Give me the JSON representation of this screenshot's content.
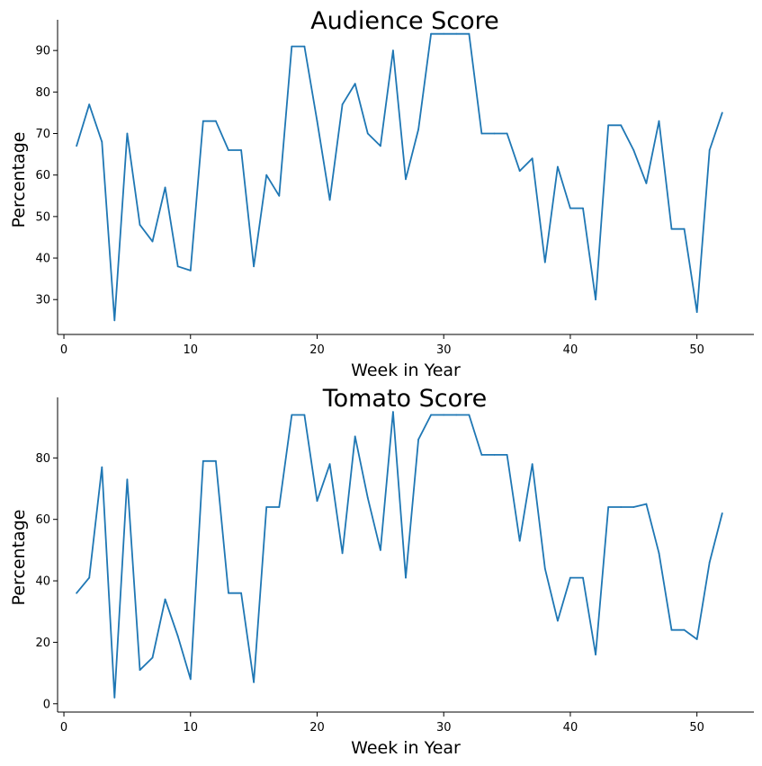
{
  "chart_data": [
    {
      "type": "line",
      "title": "Audience Score",
      "xlabel": "Week in Year",
      "ylabel": "Percentage",
      "xlim": [
        -0.5,
        54.5
      ],
      "ylim": [
        21.6,
        97.4
      ],
      "xticks": [
        0,
        10,
        20,
        30,
        40,
        50
      ],
      "yticks": [
        30,
        40,
        50,
        60,
        70,
        80,
        90
      ],
      "grid": false,
      "color": "#1f77b4",
      "x": [
        1,
        2,
        3,
        4,
        5,
        6,
        7,
        8,
        9,
        10,
        11,
        12,
        13,
        14,
        15,
        16,
        17,
        18,
        19,
        20,
        21,
        22,
        23,
        24,
        25,
        26,
        27,
        28,
        29,
        30,
        31,
        32,
        33,
        34,
        35,
        36,
        37,
        38,
        39,
        40,
        41,
        42,
        43,
        44,
        45,
        46,
        47,
        48,
        49,
        50,
        51,
        52
      ],
      "values": [
        67,
        77,
        68,
        25,
        70,
        48,
        44,
        57,
        38,
        37,
        73,
        73,
        66,
        66,
        38,
        60,
        55,
        91,
        91,
        73,
        54,
        77,
        82,
        70,
        67,
        90,
        59,
        71,
        94,
        94,
        94,
        94,
        70,
        70,
        70,
        61,
        64,
        39,
        62,
        52,
        52,
        30,
        72,
        72,
        66,
        58,
        73,
        47,
        47,
        27,
        66,
        75
      ]
    },
    {
      "type": "line",
      "title": "Tomato Score",
      "xlabel": "Week in Year",
      "ylabel": "Percentage",
      "xlim": [
        -0.5,
        54.5
      ],
      "ylim": [
        -2.7,
        99.7
      ],
      "xticks": [
        0,
        10,
        20,
        30,
        40,
        50
      ],
      "yticks": [
        0,
        20,
        40,
        60,
        80
      ],
      "grid": false,
      "color": "#1f77b4",
      "x": [
        1,
        2,
        3,
        4,
        5,
        6,
        7,
        8,
        9,
        10,
        11,
        12,
        13,
        14,
        15,
        16,
        17,
        18,
        19,
        20,
        21,
        22,
        23,
        24,
        25,
        26,
        27,
        28,
        29,
        30,
        31,
        32,
        33,
        34,
        35,
        36,
        37,
        38,
        39,
        40,
        41,
        42,
        43,
        44,
        45,
        46,
        47,
        48,
        49,
        50,
        51,
        52
      ],
      "values": [
        36,
        41,
        77,
        2,
        73,
        11,
        15,
        34,
        22,
        8,
        79,
        79,
        36,
        36,
        7,
        64,
        64,
        94,
        94,
        66,
        78,
        49,
        87,
        67,
        50,
        95,
        41,
        86,
        94,
        94,
        94,
        94,
        81,
        81,
        81,
        53,
        78,
        44,
        27,
        41,
        41,
        16,
        64,
        64,
        64,
        65,
        49,
        24,
        24,
        21,
        46,
        62
      ]
    }
  ]
}
